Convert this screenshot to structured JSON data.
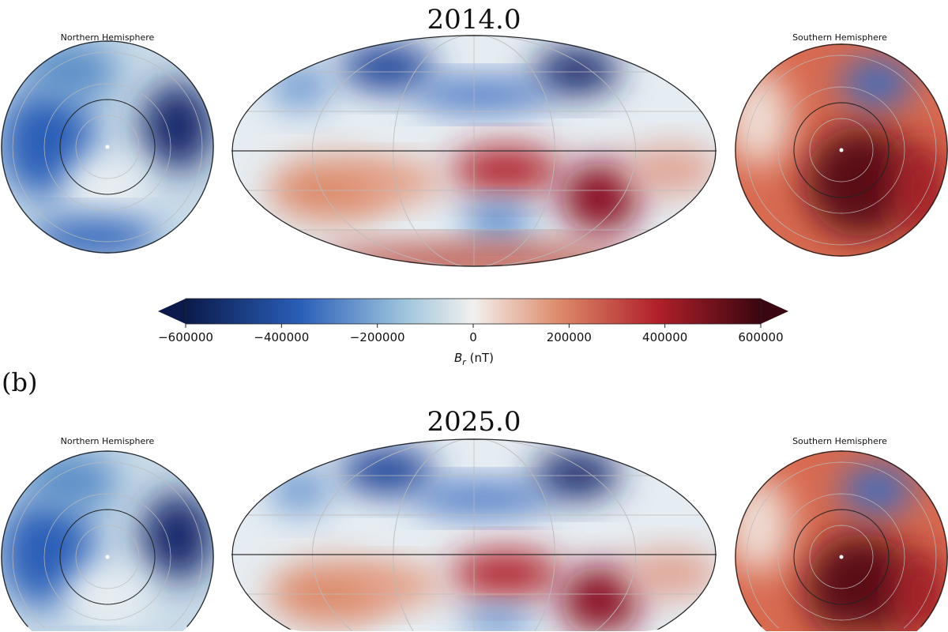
{
  "panels": [
    {
      "title": "2014.0",
      "north_label": "Northern Hemisphere",
      "south_label": "Southern Hemisphere"
    },
    {
      "label": "(b)",
      "title": "2025.0",
      "north_label": "Northern Hemisphere",
      "south_label": "Southern Hemisphere"
    }
  ],
  "colorbar": {
    "ticks": [
      "−600000",
      "−400000",
      "−200000",
      "0",
      "200000",
      "400000",
      "600000"
    ],
    "label_symbol": "B",
    "label_sub": "r",
    "label_unit": " (nT)",
    "range": [
      -600000,
      600000
    ],
    "colors": [
      "#0b1a4a",
      "#2a5fb8",
      "#9ec4dc",
      "#f2f0ee",
      "#dd8a6a",
      "#b0202a",
      "#3a0610"
    ]
  }
}
